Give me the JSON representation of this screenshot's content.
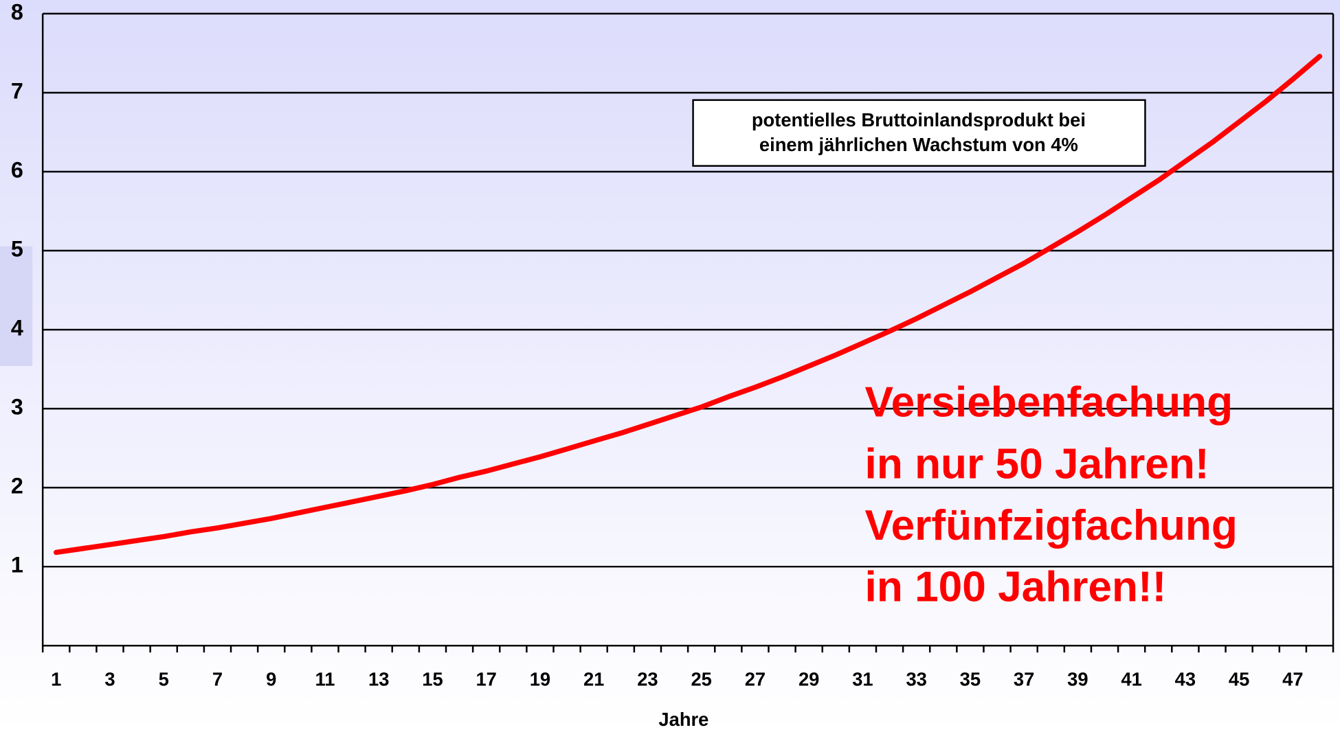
{
  "chart_data": {
    "type": "line",
    "x_label": "Jahre",
    "annotations": [
      "potentielles Bruttoinlandsprodukt bei",
      "einem jährlichen Wachstum von 4%"
    ],
    "highlight": [
      "Versiebenfachung",
      "in nur 50 Jahren!",
      "Verfünfzigfachung",
      "in 100 Jahren!!"
    ],
    "highlight_color": "#ff0000",
    "categories": [
      "1",
      null,
      "3",
      null,
      "5",
      null,
      "7",
      null,
      "9",
      null,
      "11",
      null,
      "13",
      null,
      "15",
      null,
      "17",
      null,
      "19",
      null,
      "21",
      null,
      "23",
      null,
      "25",
      null,
      "27",
      null,
      "29",
      null,
      "31",
      null,
      "33",
      null,
      "35",
      null,
      "37",
      null,
      "39",
      null,
      "41",
      null,
      "43",
      null,
      "45",
      null,
      "47",
      null
    ],
    "series": [
      {
        "color": "#ff0000",
        "values": [
          1.18,
          1.23,
          1.28,
          1.33,
          1.38,
          1.44,
          1.49,
          1.55,
          1.61,
          1.68,
          1.75,
          1.82,
          1.89,
          1.96,
          2.04,
          2.13,
          2.21,
          2.3,
          2.39,
          2.49,
          2.59,
          2.69,
          2.8,
          2.91,
          3.02,
          3.15,
          3.27,
          3.4,
          3.54,
          3.68,
          3.83,
          3.98,
          4.14,
          4.31,
          4.48,
          4.66,
          4.84,
          5.04,
          5.24,
          5.45,
          5.67,
          5.89,
          6.13,
          6.37,
          6.63,
          6.89,
          7.17,
          7.46
        ]
      }
    ],
    "ylim": [
      0,
      8
    ],
    "yticks": [
      1,
      2,
      3,
      4,
      5,
      6,
      7,
      8
    ],
    "grid": true
  }
}
